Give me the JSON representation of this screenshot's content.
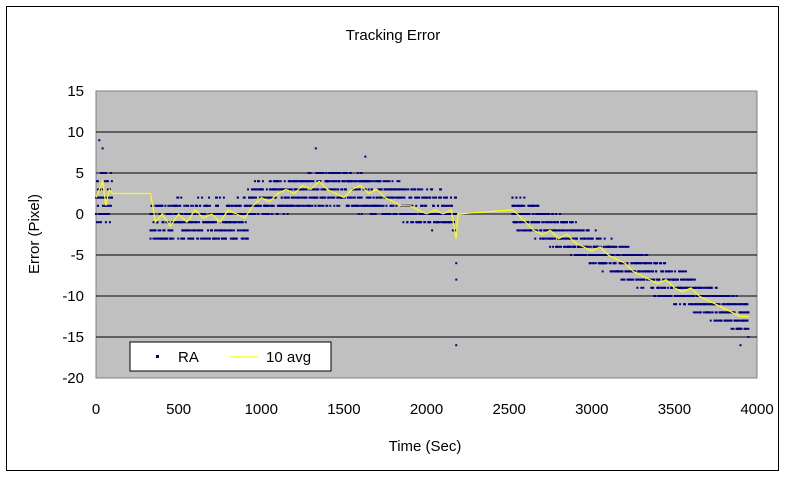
{
  "chart_data": {
    "type": "scatter",
    "title": "Tracking Error",
    "xlabel": "Time (Sec)",
    "ylabel": "Error (Pixel)",
    "xlim": [
      0,
      4000
    ],
    "ylim": [
      -20,
      15
    ],
    "xticks": [
      "0",
      "500",
      "1000",
      "1500",
      "2000",
      "2500",
      "3000",
      "3500",
      "4000"
    ],
    "yticks": [
      "15",
      "10",
      "5",
      "0",
      "-5",
      "-10",
      "-15",
      "-20"
    ],
    "grid": "horizontal",
    "legend_position": "bottom-left",
    "colors": {
      "plot_bg": "#c0c0c0",
      "points": "#000080",
      "avg_line": "#ffff00"
    },
    "series": [
      {
        "name": "RA",
        "marker": "dot",
        "segments": [
          {
            "x": [
              0,
              100
            ],
            "level": [
              2,
              2
            ],
            "spread": 3
          },
          {
            "x": [
              330,
              920
            ],
            "level": [
              -1,
              -0.5
            ],
            "spread": 2.5
          },
          {
            "x": [
              920,
              1500
            ],
            "level": [
              1.5,
              3.5
            ],
            "spread": 2
          },
          {
            "x": [
              1500,
              2180
            ],
            "level": [
              3,
              0
            ],
            "spread": 2.2
          },
          {
            "x": [
              2520,
              3950
            ],
            "level": [
              0.5,
              -13
            ],
            "spread": 2
          }
        ],
        "outliers": [
          [
            20,
            9
          ],
          [
            40,
            8
          ],
          [
            1330,
            8
          ],
          [
            1630,
            7
          ],
          [
            2180,
            -6
          ],
          [
            2180,
            -8
          ],
          [
            2180,
            -16
          ],
          [
            3900,
            -16
          ]
        ]
      },
      {
        "name": "10 avg",
        "marker": "line",
        "x": [
          0,
          20,
          40,
          60,
          80,
          100,
          330,
          360,
          400,
          450,
          500,
          550,
          600,
          650,
          700,
          750,
          800,
          850,
          900,
          950,
          1000,
          1050,
          1100,
          1150,
          1200,
          1250,
          1300,
          1350,
          1400,
          1450,
          1500,
          1550,
          1600,
          1650,
          1700,
          1750,
          1800,
          1850,
          1900,
          1950,
          2000,
          2050,
          2100,
          2150,
          2170,
          2180,
          2190,
          2520,
          2550,
          2600,
          2650,
          2700,
          2750,
          2800,
          2850,
          2900,
          2950,
          3000,
          3050,
          3100,
          3150,
          3200,
          3250,
          3300,
          3350,
          3400,
          3450,
          3500,
          3550,
          3600,
          3650,
          3700,
          3750,
          3800,
          3850,
          3900,
          3950
        ],
        "y": [
          2,
          3,
          4,
          1,
          3,
          2.5,
          2.5,
          -1,
          0,
          -1.5,
          0,
          -1,
          0.5,
          -0.5,
          0,
          -1,
          0.5,
          0,
          -0.5,
          1,
          2,
          1.5,
          2.5,
          3,
          2.5,
          3.5,
          3,
          4,
          3,
          2.5,
          2,
          3,
          3.5,
          2.5,
          3,
          2,
          1.5,
          1,
          1,
          0.5,
          0,
          0.5,
          0,
          0.5,
          -2,
          -3,
          0,
          0.5,
          0,
          -1,
          -2,
          -2.5,
          -2,
          -3,
          -2.5,
          -3.5,
          -4,
          -4.5,
          -4,
          -5,
          -5.5,
          -6,
          -7,
          -7.5,
          -8,
          -8.5,
          -8,
          -9,
          -9.5,
          -9,
          -10,
          -10.5,
          -11,
          -11.5,
          -12,
          -12.5,
          -12.5
        ]
      }
    ]
  }
}
